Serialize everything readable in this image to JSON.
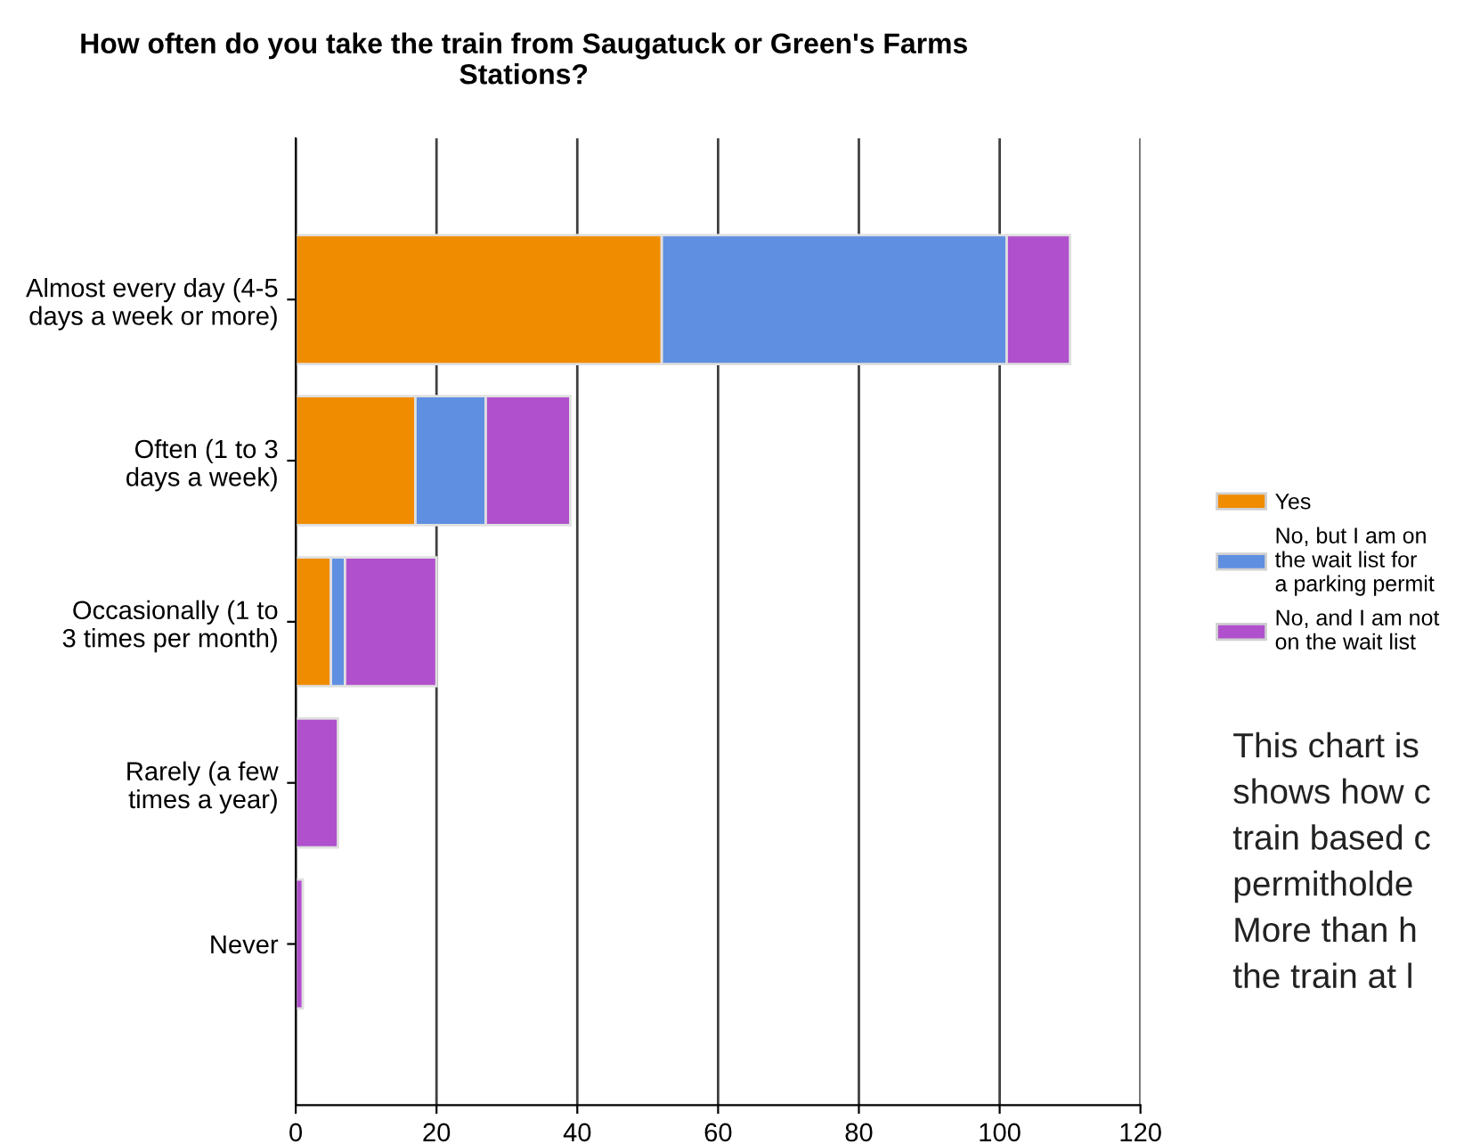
{
  "chart_data": {
    "type": "bar",
    "orientation": "horizontal",
    "stacked": true,
    "title": "How often do you take the train from Saugatuck or Green's Farms\nStations?",
    "categories": [
      "Almost every day (4-5\ndays a week or more)",
      "Often (1 to 3\ndays a week)",
      "Occasionally (1 to\n3 times per month)",
      "Rarely (a few\ntimes a year)",
      "Never"
    ],
    "series": [
      {
        "name": "Yes",
        "color": "#f08c00",
        "values": [
          52,
          17,
          5,
          0,
          0
        ]
      },
      {
        "name": "No, but I am on\nthe wait list for\na parking permit",
        "color": "#5f8fe0",
        "values": [
          49,
          10,
          2,
          0,
          0
        ]
      },
      {
        "name": "No, and I am not\non the wait list",
        "color": "#b050cc",
        "values": [
          9,
          12,
          13,
          6,
          1
        ]
      }
    ],
    "xlim": [
      0,
      120
    ],
    "xticks": [
      0,
      20,
      40,
      60,
      80,
      100,
      120
    ],
    "grid": "x",
    "legend": "right",
    "annotations": [
      "This chart is\nshows how c\ntrain based c\npermitholde\nMore than h\nthe train at l"
    ]
  }
}
